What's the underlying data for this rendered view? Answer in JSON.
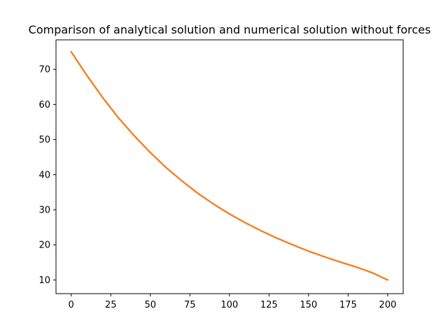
{
  "chart_data": {
    "type": "line",
    "title": "Comparison of analytical solution and numerical solution without forces",
    "xlabel": "",
    "ylabel": "",
    "xlim": [
      -9.6,
      209.8
    ],
    "ylim": [
      6.1,
      78.4
    ],
    "grid": false,
    "x_ticks": [
      0,
      25,
      50,
      75,
      100,
      125,
      150,
      175,
      200
    ],
    "y_ticks": [
      10,
      20,
      30,
      40,
      50,
      60,
      70
    ],
    "series": [
      {
        "color": "#1f77b4",
        "x": [
          0,
          10,
          20,
          30,
          40,
          50,
          60,
          70,
          80,
          90,
          100,
          110,
          120,
          130,
          140,
          150,
          160,
          170,
          180,
          190,
          200
        ],
        "values": [
          75.0,
          68.2,
          61.9,
          56.1,
          51.0,
          46.3,
          42.0,
          38.2,
          34.7,
          31.6,
          28.8,
          26.3,
          24.0,
          21.9,
          20.0,
          18.2,
          16.6,
          15.1,
          13.7,
          12.1,
          10.0
        ]
      },
      {
        "color": "#d62728",
        "x": [
          0,
          10,
          20,
          30,
          40,
          50,
          60,
          70,
          80,
          90,
          100,
          110,
          120,
          130,
          140,
          150,
          160,
          170,
          180,
          190,
          200
        ],
        "values": [
          75.0,
          68.2,
          61.9,
          56.1,
          51.0,
          46.3,
          42.0,
          38.2,
          34.7,
          31.6,
          28.8,
          26.3,
          24.0,
          21.9,
          20.0,
          18.2,
          16.6,
          15.1,
          13.7,
          12.1,
          10.0
        ]
      },
      {
        "color": "#ff7f0e",
        "x": [
          0,
          10,
          20,
          30,
          40,
          50,
          60,
          70,
          80,
          90,
          100,
          110,
          120,
          130,
          140,
          150,
          160,
          170,
          180,
          190,
          200
        ],
        "values": [
          75.0,
          68.2,
          61.9,
          56.1,
          51.0,
          46.3,
          42.0,
          38.2,
          34.7,
          31.6,
          28.8,
          26.3,
          24.0,
          21.9,
          20.0,
          18.2,
          16.6,
          15.1,
          13.7,
          12.1,
          10.0
        ]
      }
    ]
  }
}
